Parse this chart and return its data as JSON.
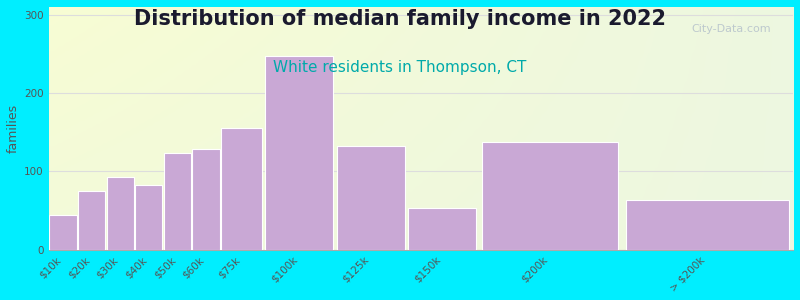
{
  "title": "Distribution of median family income in 2022",
  "subtitle": "White residents in Thompson, CT",
  "ylabel": "families",
  "categories": [
    "$10k",
    "$20k",
    "$30k",
    "$40k",
    "$50k",
    "$60k",
    "$75k",
    "$100k",
    "$125k",
    "$150k",
    "$200k",
    "> $200k"
  ],
  "values": [
    45,
    75,
    93,
    83,
    123,
    128,
    155,
    248,
    132,
    53,
    138,
    63
  ],
  "bar_color": "#c9a8d5",
  "bar_edgecolor": "#ffffff",
  "background_outer": "#00eeff",
  "yticks": [
    0,
    100,
    200,
    300
  ],
  "ylim": [
    0,
    310
  ],
  "title_fontsize": 15,
  "subtitle_fontsize": 11,
  "subtitle_color": "#00aaaa",
  "ylabel_fontsize": 9,
  "tick_label_fontsize": 7.5,
  "watermark_text": "City-Data.com",
  "watermark_color": "#b8c4cc",
  "left_edges": [
    0,
    10,
    20,
    30,
    40,
    50,
    60,
    75,
    100,
    125,
    150,
    200
  ],
  "right_edges": [
    10,
    20,
    30,
    40,
    50,
    60,
    75,
    100,
    125,
    150,
    200,
    260
  ]
}
